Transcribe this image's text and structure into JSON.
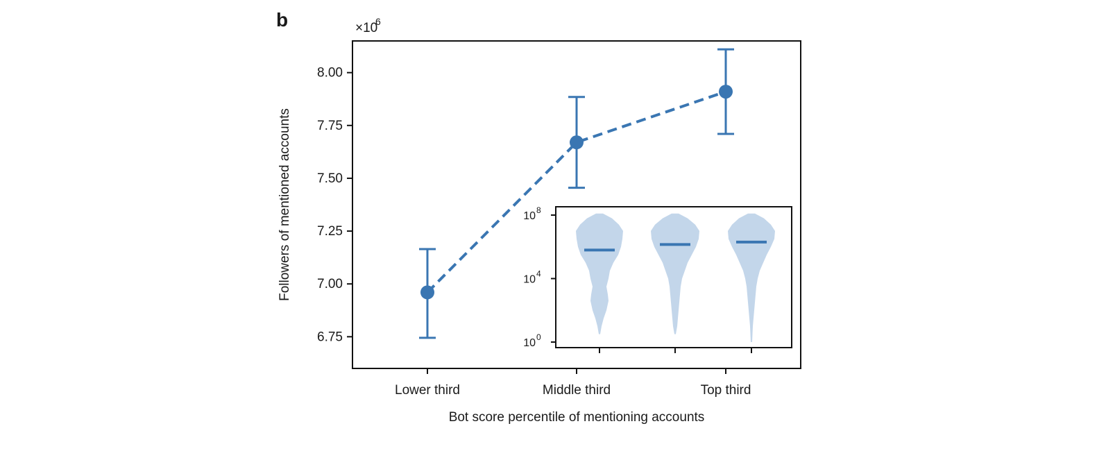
{
  "panel_label": "b",
  "colors": {
    "series": "#3a76b2",
    "violin": "#c3d6ea",
    "axis": "#111111"
  },
  "chart_data": {
    "type": "line",
    "title": "",
    "xlabel": "Bot score percentile of mentioning accounts",
    "ylabel": "Followers of mentioned accounts",
    "y_multiplier_label": "×10",
    "y_multiplier_exponent": "6",
    "categories": [
      "Lower third",
      "Middle third",
      "Top third"
    ],
    "ylim": [
      6.6,
      8.15
    ],
    "yticks": [
      "6.75",
      "7.00",
      "7.25",
      "7.50",
      "7.75",
      "8.00"
    ],
    "line_style": "dashed",
    "series": [
      {
        "values": [
          6.96,
          7.67,
          7.91
        ],
        "error_low": [
          6.745,
          7.455,
          7.71
        ],
        "error_high": [
          7.165,
          7.885,
          8.11
        ]
      }
    ],
    "inset": {
      "type": "violin",
      "yscale": "log",
      "ylim_exponent": [
        0,
        8
      ],
      "ytick_base": "10",
      "ytick_exponents": [
        "0",
        "4",
        "8"
      ],
      "categories": [
        "Lower third",
        "Middle third",
        "Top third"
      ],
      "medians_log10": [
        5.8,
        6.15,
        6.3
      ]
    }
  }
}
